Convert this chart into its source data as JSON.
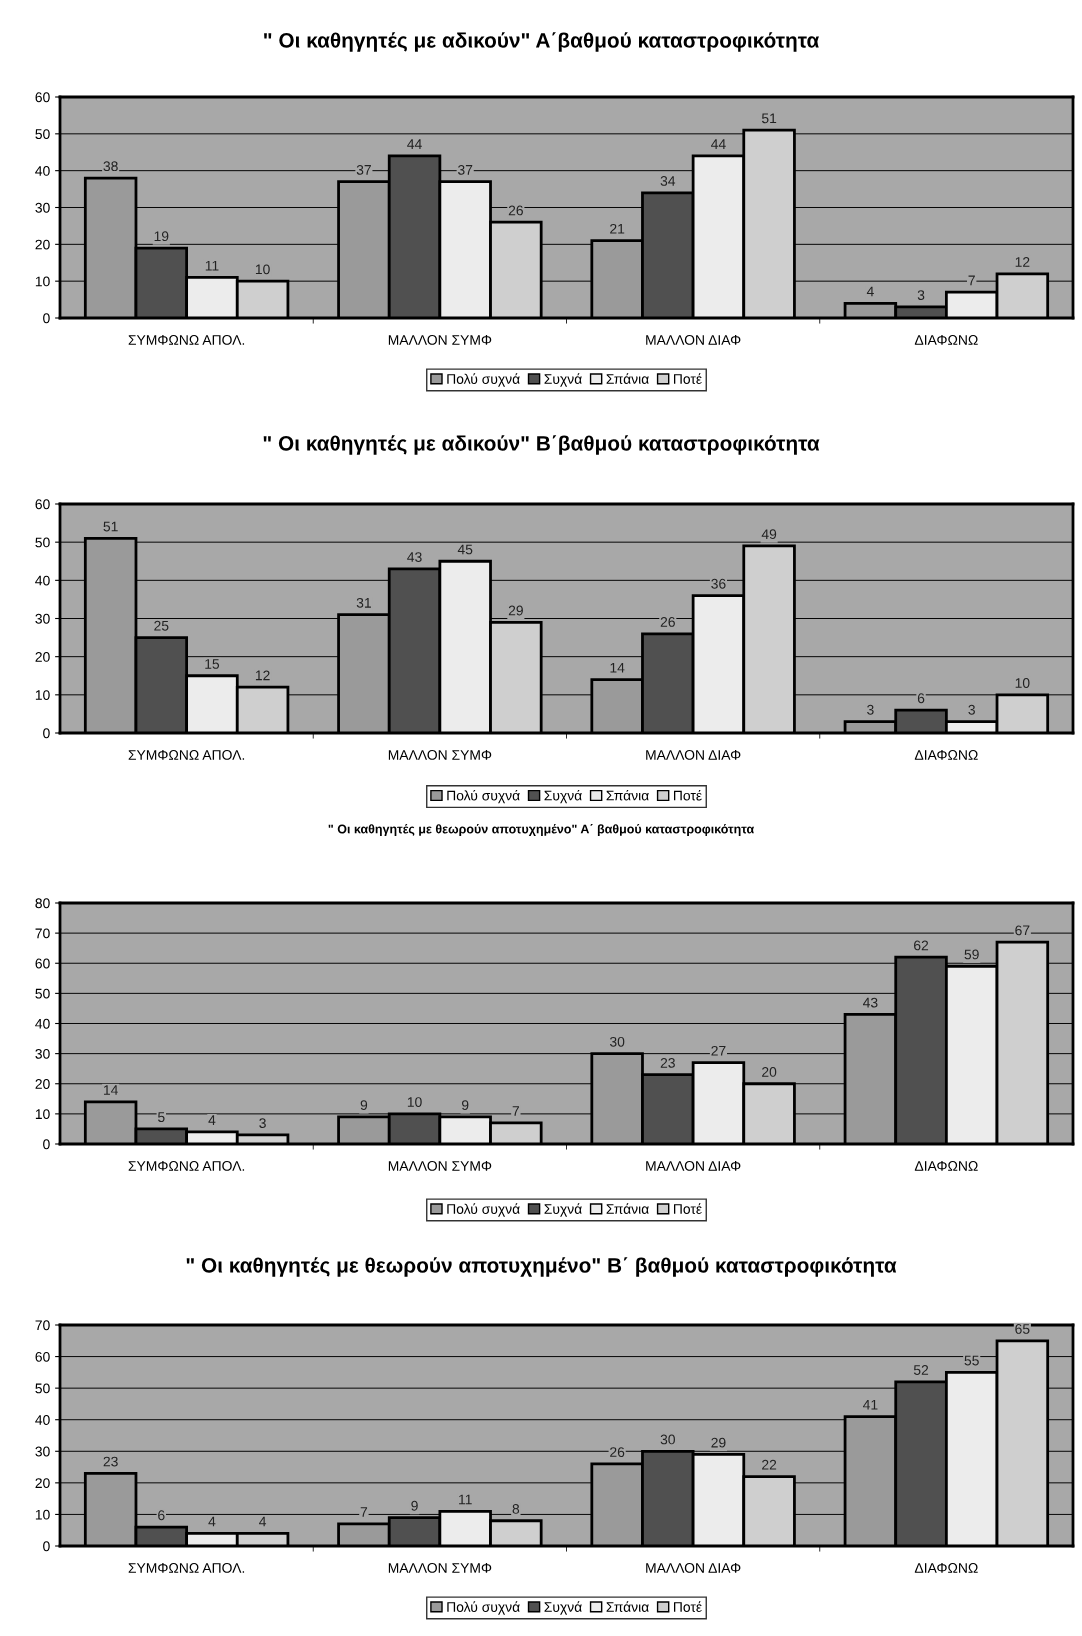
{
  "chart_data": [
    {
      "type": "bar",
      "title": "\" Οι καθηγητές με αδικούν\" Α΄βαθμού καταστροφικότητα",
      "categories": [
        "ΣΥΜΦΩΝΩ ΑΠΟΛ.",
        "ΜΑΛΛΟΝ ΣΥΜΦ",
        "ΜΑΛΛΟΝ ΔΙΑΦ",
        "ΔΙΑΦΩΝΩ"
      ],
      "series": [
        {
          "name": "Πολύ συχνά",
          "color": "#9a9a9a",
          "values": [
            38,
            37,
            21,
            4
          ]
        },
        {
          "name": "Συχνά",
          "color": "#505050",
          "values": [
            19,
            44,
            34,
            3
          ]
        },
        {
          "name": "Σπάνια",
          "color": "#ececec",
          "values": [
            11,
            37,
            44,
            7
          ]
        },
        {
          "name": "Ποτέ",
          "color": "#cfcfcf",
          "values": [
            10,
            26,
            51,
            12
          ]
        }
      ],
      "ylim": [
        0,
        60
      ],
      "yticks": [
        0,
        10,
        20,
        30,
        40,
        50,
        60
      ],
      "grid": "y",
      "legend": "bottom",
      "data_labels": true
    },
    {
      "type": "bar",
      "title": "\" Οι καθηγητές με αδικούν\" Β΄βαθμού καταστροφικότητα",
      "categories": [
        "ΣΥΜΦΩΝΩ ΑΠΟΛ.",
        "ΜΑΛΛΟΝ ΣΥΜΦ",
        "ΜΑΛΛΟΝ ΔΙΑΦ",
        "ΔΙΑΦΩΝΩ"
      ],
      "series": [
        {
          "name": "Πολύ συχνά",
          "color": "#9a9a9a",
          "values": [
            51,
            31,
            14,
            3
          ]
        },
        {
          "name": "Συχνά",
          "color": "#505050",
          "values": [
            25,
            43,
            26,
            6
          ]
        },
        {
          "name": "Σπάνια",
          "color": "#ececec",
          "values": [
            15,
            45,
            36,
            3
          ]
        },
        {
          "name": "Ποτέ",
          "color": "#cfcfcf",
          "values": [
            12,
            29,
            49,
            10
          ]
        }
      ],
      "ylim": [
        0,
        60
      ],
      "yticks": [
        0,
        10,
        20,
        30,
        40,
        50,
        60
      ],
      "grid": "y",
      "legend": "bottom",
      "data_labels": true
    },
    {
      "type": "bar",
      "title": "\" Οι καθηγητές με θεωρούν αποτυχημένο\" Α΄ βαθμού καταστροφικότητα",
      "categories": [
        "ΣΥΜΦΩΝΩ ΑΠΟΛ.",
        "ΜΑΛΛΟΝ ΣΥΜΦ",
        "ΜΑΛΛΟΝ ΔΙΑΦ",
        "ΔΙΑΦΩΝΩ"
      ],
      "series": [
        {
          "name": "Πολύ συχνά",
          "color": "#9a9a9a",
          "values": [
            14,
            9,
            30,
            43
          ]
        },
        {
          "name": "Συχνά",
          "color": "#505050",
          "values": [
            5,
            10,
            23,
            62
          ]
        },
        {
          "name": "Σπάνια",
          "color": "#ececec",
          "values": [
            4,
            9,
            27,
            59
          ]
        },
        {
          "name": "Ποτέ",
          "color": "#cfcfcf",
          "values": [
            3,
            7,
            20,
            67
          ]
        }
      ],
      "ylim": [
        0,
        80
      ],
      "yticks": [
        0,
        10,
        20,
        30,
        40,
        50,
        60,
        70,
        80
      ],
      "grid": "y",
      "legend": "bottom",
      "data_labels": true
    },
    {
      "type": "bar",
      "title": "\" Οι καθηγητές με θεωρούν αποτυχημένο\" Β΄ βαθμού καταστροφικότητα",
      "categories": [
        "ΣΥΜΦΩΝΩ ΑΠΟΛ.",
        "ΜΑΛΛΟΝ ΣΥΜΦ",
        "ΜΑΛΛΟΝ ΔΙΑΦ",
        "ΔΙΑΦΩΝΩ"
      ],
      "series": [
        {
          "name": "Πολύ συχνά",
          "color": "#9a9a9a",
          "values": [
            23,
            7,
            26,
            41
          ]
        },
        {
          "name": "Συχνά",
          "color": "#505050",
          "values": [
            6,
            9,
            30,
            52
          ]
        },
        {
          "name": "Σπάνια",
          "color": "#ececec",
          "values": [
            4,
            11,
            29,
            55
          ]
        },
        {
          "name": "Ποτέ",
          "color": "#cfcfcf",
          "values": [
            4,
            8,
            22,
            65
          ]
        }
      ],
      "ylim": [
        0,
        70
      ],
      "yticks": [
        0,
        10,
        20,
        30,
        40,
        50,
        60,
        70
      ],
      "grid": "y",
      "legend": "bottom",
      "data_labels": true
    }
  ]
}
